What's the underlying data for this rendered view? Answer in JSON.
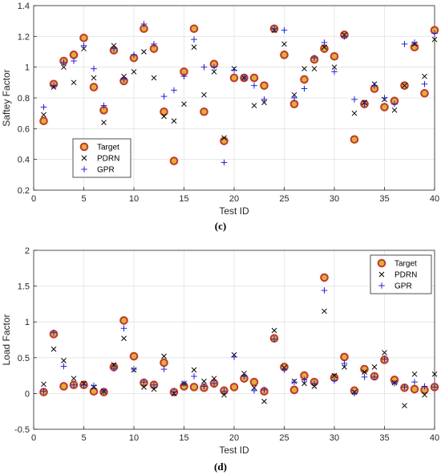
{
  "colors": {
    "target_edge": "#c0392b",
    "target_fill": "#e0ad3c",
    "pdrn": "#000000",
    "gpr": "#2323d6",
    "axis": "#262626",
    "grid": "#e2e2e2"
  },
  "chart_data": [
    {
      "type": "scatter",
      "caption": "(c)",
      "xlabel": "Test ID",
      "ylabel": "Saftey Factor",
      "xlim": [
        0,
        40
      ],
      "ylim": [
        0.2,
        1.4
      ],
      "xticks": [
        0,
        5,
        10,
        15,
        20,
        25,
        30,
        35,
        40
      ],
      "yticks": [
        0.2,
        0.4,
        0.6,
        0.8,
        1,
        1.2,
        1.4
      ],
      "yticklabels": [
        "0.2",
        "0.4",
        "0.6",
        "0.8",
        "1",
        "1.2",
        "1.4"
      ],
      "grid": true,
      "legend_position": "lower-left",
      "x": [
        1,
        2,
        3,
        4,
        5,
        6,
        7,
        8,
        9,
        10,
        11,
        12,
        13,
        14,
        15,
        16,
        17,
        18,
        19,
        20,
        21,
        22,
        23,
        24,
        25,
        26,
        27,
        28,
        29,
        30,
        31,
        32,
        33,
        34,
        35,
        36,
        37,
        38,
        39,
        40
      ],
      "series": [
        {
          "name": "Target",
          "marker": "circle",
          "values": [
            0.65,
            0.89,
            1.04,
            1.08,
            1.19,
            0.87,
            0.72,
            1.11,
            0.91,
            1.06,
            1.25,
            1.12,
            0.71,
            0.39,
            0.97,
            1.25,
            0.71,
            1.02,
            0.52,
            0.93,
            0.93,
            0.93,
            0.88,
            1.25,
            1.08,
            0.76,
            0.92,
            1.05,
            1.12,
            1.07,
            1.21,
            0.53,
            0.76,
            0.86,
            0.74,
            0.78,
            0.88,
            1.13,
            0.83,
            1.24
          ]
        },
        {
          "name": "PDRN",
          "marker": "x",
          "values": [
            0.69,
            0.87,
            1.0,
            0.9,
            1.12,
            0.93,
            0.64,
            1.14,
            0.94,
            0.97,
            1.1,
            0.93,
            0.68,
            0.65,
            0.76,
            1.13,
            0.82,
            0.97,
            0.54,
            0.99,
            0.93,
            0.75,
            0.77,
            1.24,
            1.15,
            0.82,
            0.99,
            0.99,
            1.13,
            1.0,
            1.21,
            0.7,
            0.77,
            0.89,
            0.79,
            0.72,
            0.88,
            1.15,
            0.94,
            1.18
          ]
        },
        {
          "name": "GPR",
          "marker": "plus",
          "values": [
            0.74,
            0.88,
            1.03,
            1.04,
            1.14,
            0.99,
            0.75,
            1.12,
            0.92,
            1.08,
            1.28,
            1.15,
            0.81,
            0.85,
            0.94,
            1.18,
            1.0,
            1.0,
            0.38,
            0.98,
            0.93,
            0.88,
            0.79,
            1.25,
            1.24,
            0.8,
            0.86,
            1.06,
            1.16,
            0.97,
            1.2,
            0.79,
            0.76,
            0.88,
            0.8,
            0.76,
            1.15,
            1.16,
            0.89,
            1.22
          ]
        }
      ]
    },
    {
      "type": "scatter",
      "caption": "(d)",
      "xlabel": "Test ID",
      "ylabel": "Load Factor",
      "xlim": [
        0,
        40
      ],
      "ylim": [
        -0.5,
        2
      ],
      "xticks": [
        0,
        5,
        10,
        15,
        20,
        25,
        30,
        35,
        40
      ],
      "yticks": [
        -0.5,
        0,
        0.5,
        1,
        1.5,
        2
      ],
      "yticklabels": [
        "-0.5",
        "0",
        "0.5",
        "1",
        "1.5",
        "2"
      ],
      "grid": true,
      "legend_position": "top-right",
      "x": [
        1,
        2,
        3,
        4,
        5,
        6,
        7,
        8,
        9,
        10,
        11,
        12,
        13,
        14,
        15,
        16,
        17,
        18,
        19,
        20,
        21,
        22,
        23,
        24,
        25,
        26,
        27,
        28,
        29,
        30,
        31,
        32,
        33,
        34,
        35,
        36,
        37,
        38,
        39,
        40
      ],
      "series": [
        {
          "name": "Target",
          "marker": "circle",
          "values": [
            0.02,
            0.83,
            0.1,
            0.12,
            0.12,
            0.03,
            0.02,
            0.37,
            1.02,
            0.52,
            0.15,
            0.12,
            0.43,
            0.02,
            0.1,
            0.09,
            0.08,
            0.14,
            0.04,
            0.09,
            0.21,
            0.16,
            0.03,
            0.77,
            0.37,
            0.05,
            0.25,
            0.16,
            1.62,
            0.22,
            0.51,
            0.04,
            0.34,
            0.24,
            0.47,
            0.19,
            0.08,
            0.06,
            0.05,
            0.09
          ]
        },
        {
          "name": "PDRN",
          "marker": "x",
          "values": [
            0.13,
            0.62,
            0.46,
            0.21,
            0.14,
            0.09,
            0.03,
            0.4,
            0.77,
            0.33,
            0.09,
            0.06,
            0.52,
            0.0,
            0.14,
            0.33,
            0.17,
            0.21,
            -0.02,
            0.54,
            0.28,
            0.08,
            -0.11,
            0.88,
            0.36,
            0.17,
            0.14,
            0.1,
            1.15,
            0.25,
            0.37,
            0.02,
            0.3,
            0.37,
            0.57,
            0.15,
            -0.17,
            0.27,
            -0.02,
            0.27
          ]
        },
        {
          "name": "GPR",
          "marker": "plus",
          "values": [
            0.03,
            0.85,
            0.38,
            0.12,
            0.12,
            0.11,
            0.03,
            0.35,
            0.91,
            0.34,
            0.16,
            0.12,
            0.34,
            0.02,
            0.14,
            0.24,
            0.1,
            0.14,
            0.03,
            0.51,
            0.24,
            0.04,
            0.05,
            0.76,
            0.33,
            0.16,
            0.19,
            0.14,
            1.44,
            0.18,
            0.42,
            0.0,
            0.23,
            0.23,
            0.48,
            0.14,
            0.09,
            0.16,
            0.1,
            0.09
          ]
        }
      ]
    }
  ]
}
